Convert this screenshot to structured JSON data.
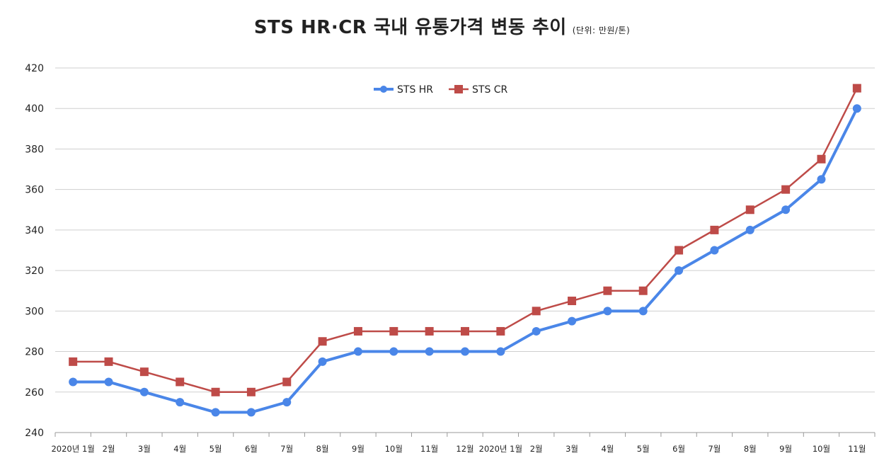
{
  "chart_data": {
    "type": "line",
    "title": "STS HR·CR  국내 유통가격 변동 추이",
    "subtitle": "(단위: 만원/톤)",
    "categories": [
      "2020년 1월",
      "2월",
      "3월",
      "4월",
      "5월",
      "6월",
      "7월",
      "8월",
      "9월",
      "10월",
      "11월",
      "12월",
      "2020년 1월",
      "2월",
      "3월",
      "4월",
      "5월",
      "6월",
      "7월",
      "8월",
      "9월",
      "10월",
      "11월"
    ],
    "series": [
      {
        "name": "STS HR",
        "color": "#4a86e8",
        "marker": "circle",
        "values": [
          265,
          265,
          260,
          255,
          250,
          250,
          255,
          275,
          280,
          280,
          280,
          280,
          280,
          290,
          295,
          300,
          300,
          320,
          330,
          340,
          350,
          365,
          400
        ]
      },
      {
        "name": "STS CR",
        "color": "#be4b48",
        "marker": "square",
        "values": [
          275,
          275,
          270,
          265,
          260,
          260,
          265,
          285,
          290,
          290,
          290,
          290,
          290,
          300,
          305,
          310,
          310,
          330,
          340,
          350,
          360,
          375,
          410
        ]
      }
    ],
    "ylim": [
      240,
      420
    ],
    "yticks": [
      240,
      260,
      280,
      300,
      320,
      340,
      360,
      380,
      400,
      420
    ],
    "xlabel": "",
    "ylabel": "",
    "grid": true,
    "legend": "top-center"
  }
}
